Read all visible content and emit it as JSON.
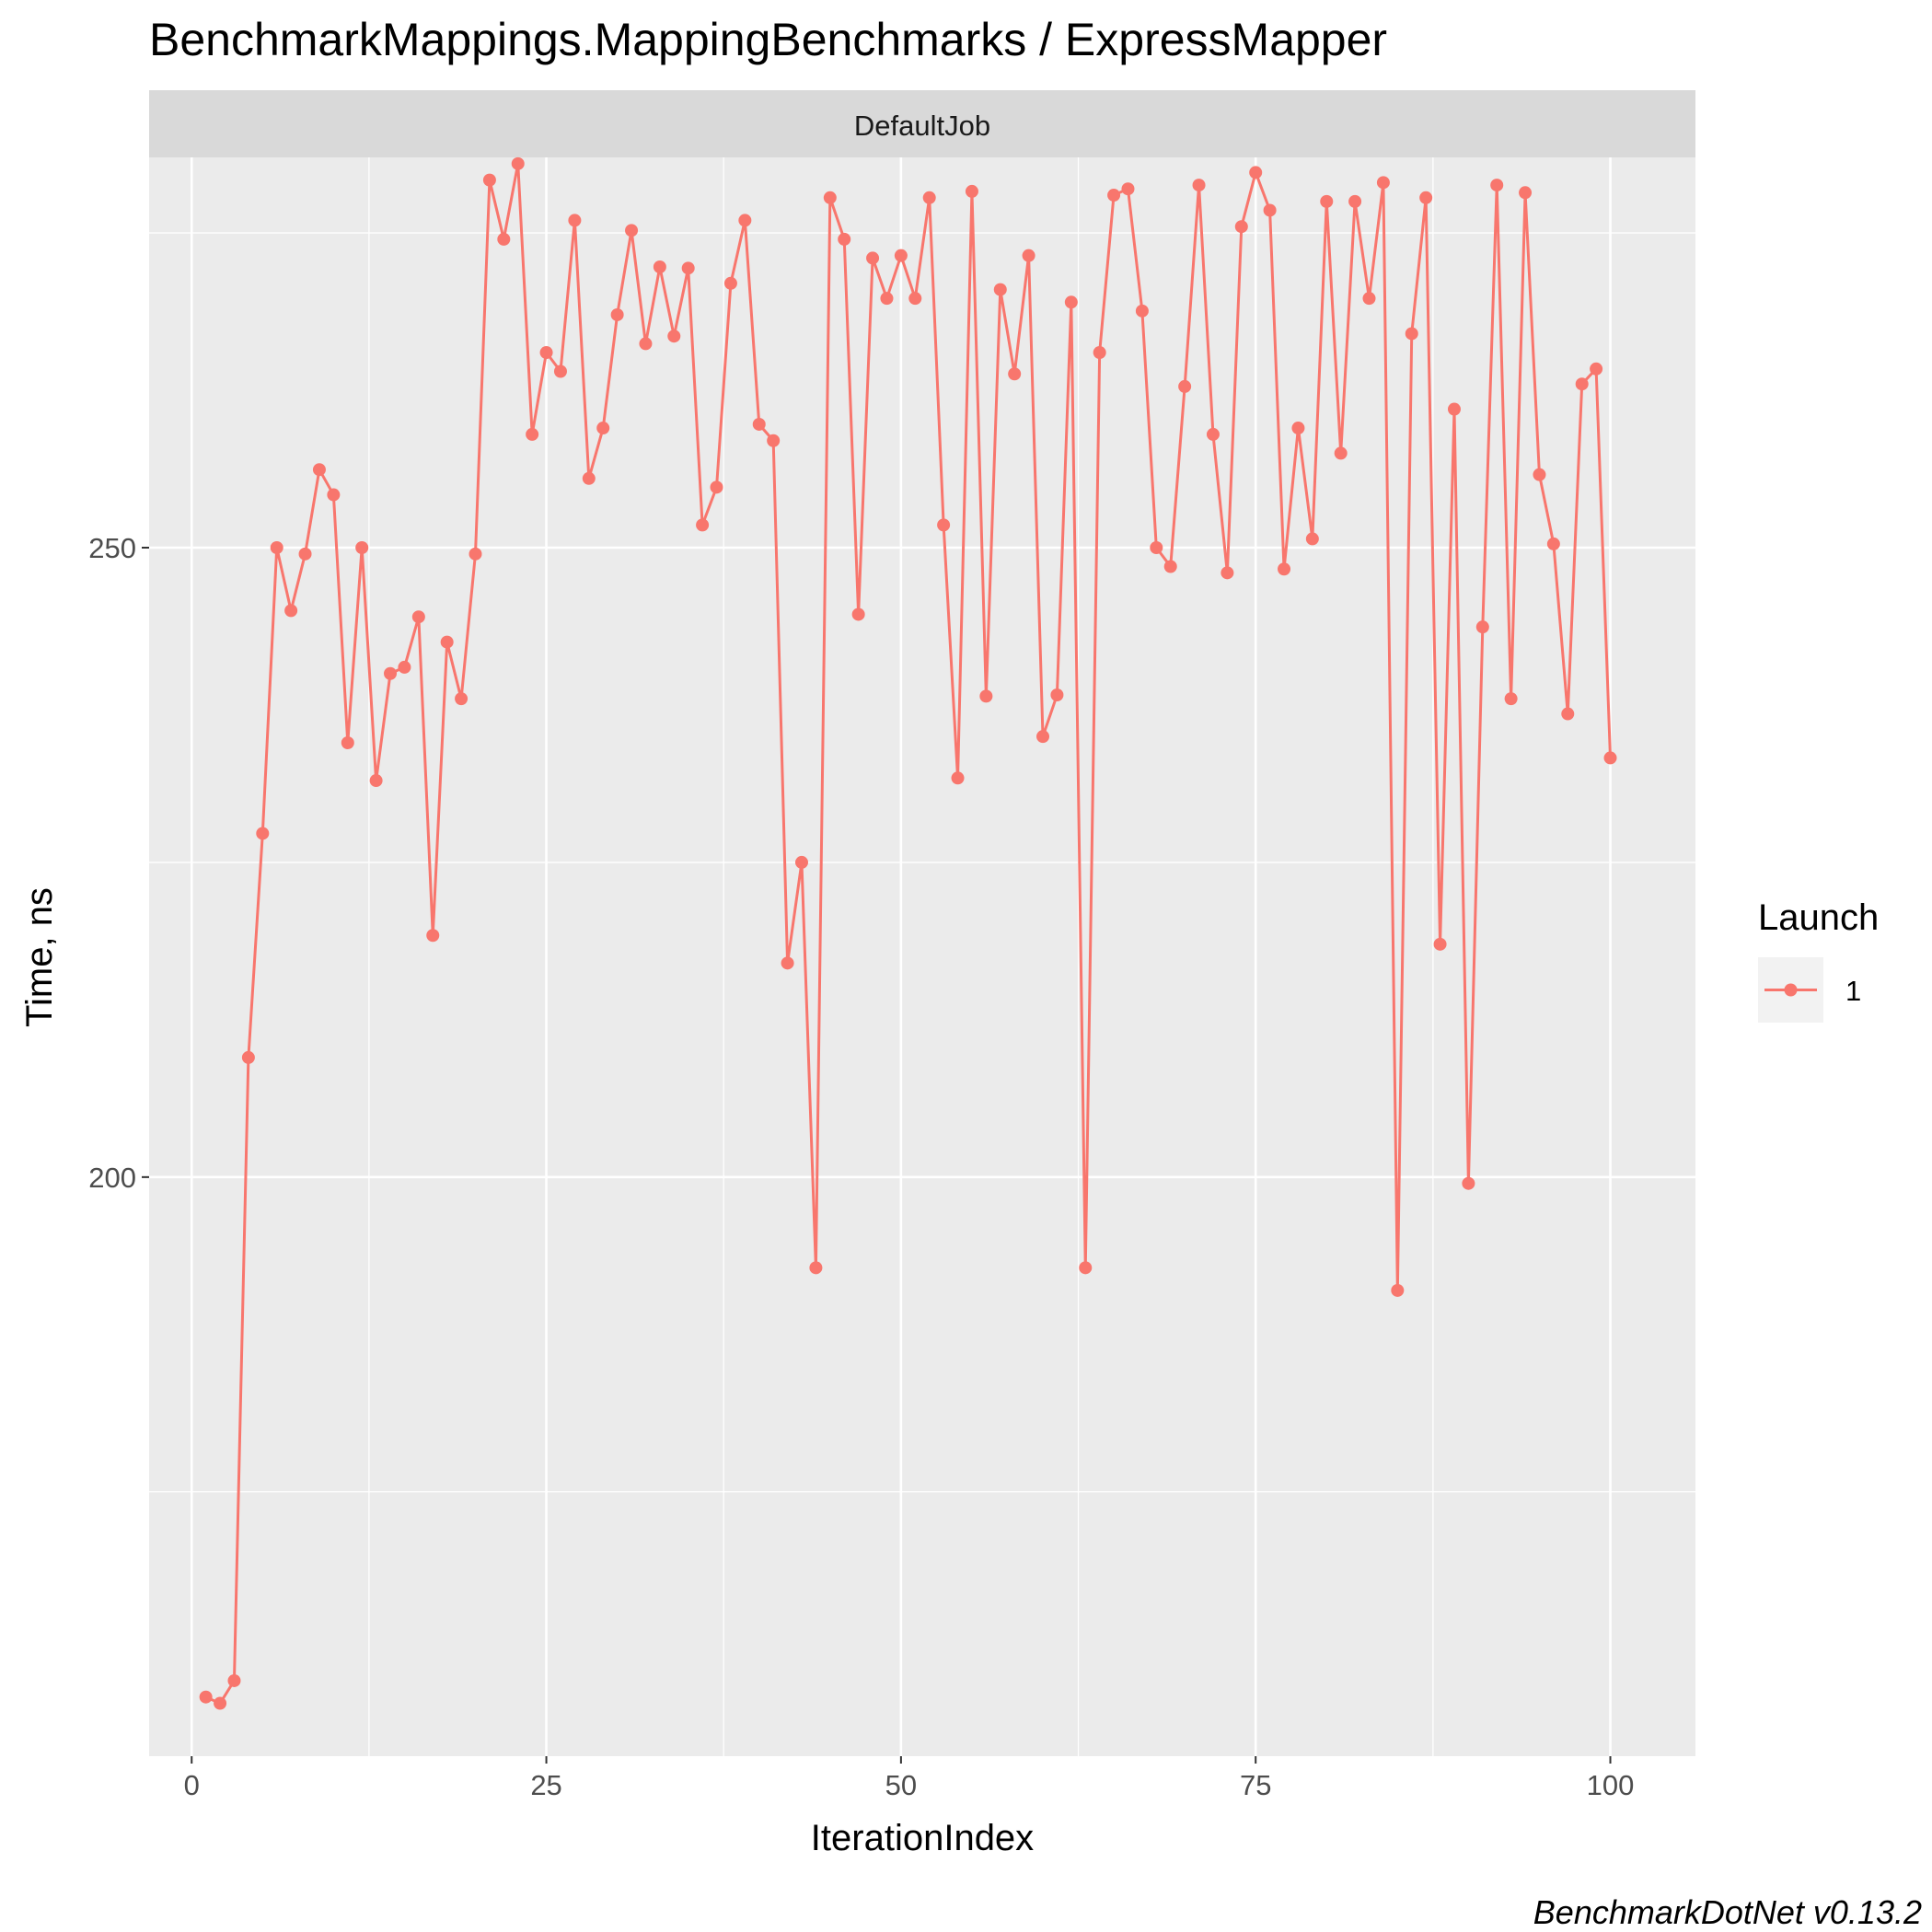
{
  "chart_data": {
    "type": "line",
    "title": "BenchmarkMappings.MappingBenchmarks / ExpressMapper",
    "facet_label": "DefaultJob",
    "xlabel": "IterationIndex",
    "ylabel": "Time, ns",
    "caption": "BenchmarkDotNet v0.13.2",
    "xlim": [
      -3,
      106
    ],
    "ylim": [
      154,
      281
    ],
    "x_ticks": [
      0,
      25,
      50,
      75,
      100
    ],
    "x_tick_labels": [
      "0",
      "25",
      "50",
      "75",
      "100"
    ],
    "y_ticks": [
      200,
      250
    ],
    "y_tick_labels": [
      "200",
      "250"
    ],
    "y_minor_gridlines": [
      175,
      225,
      275
    ],
    "grid": true,
    "legend": {
      "title": "Launch",
      "position": "right",
      "entries": [
        "1"
      ]
    },
    "colors": {
      "series": "#F8766D",
      "panel": "#EBEBEB",
      "strip": "#D9D9D9",
      "grid": "#FFFFFF"
    },
    "series": [
      {
        "name": "1",
        "x": [
          1,
          2,
          3,
          4,
          5,
          6,
          7,
          8,
          9,
          10,
          11,
          12,
          13,
          14,
          15,
          16,
          17,
          18,
          19,
          20,
          21,
          22,
          23,
          24,
          25,
          26,
          27,
          28,
          29,
          30,
          31,
          32,
          33,
          34,
          35,
          36,
          37,
          38,
          39,
          40,
          41,
          42,
          43,
          44,
          45,
          46,
          47,
          48,
          49,
          50,
          51,
          52,
          53,
          54,
          55,
          56,
          57,
          58,
          59,
          60,
          61,
          62,
          63,
          64,
          65,
          66,
          67,
          68,
          69,
          70,
          71,
          72,
          73,
          74,
          75,
          76,
          77,
          78,
          79,
          80,
          81,
          82,
          83,
          84,
          85,
          86,
          87,
          88,
          89,
          90,
          91,
          92,
          93,
          94,
          95,
          96,
          97,
          98,
          99,
          100
        ],
        "values": [
          158.7,
          158.2,
          160.0,
          209.5,
          227.3,
          250.0,
          245.0,
          249.5,
          256.2,
          254.2,
          234.5,
          250.0,
          231.5,
          240.0,
          240.5,
          244.5,
          219.2,
          242.5,
          238.0,
          249.5,
          279.2,
          274.5,
          280.5,
          259.0,
          265.5,
          264.0,
          276.0,
          255.5,
          259.5,
          268.5,
          275.2,
          266.2,
          272.3,
          266.8,
          272.2,
          251.8,
          254.8,
          271.0,
          276.0,
          259.8,
          258.5,
          217.0,
          225.0,
          192.8,
          277.8,
          274.5,
          244.7,
          273.0,
          269.8,
          273.2,
          269.8,
          277.8,
          251.8,
          231.7,
          278.3,
          238.2,
          270.5,
          263.8,
          273.2,
          235.0,
          238.3,
          269.5,
          192.8,
          265.5,
          278.0,
          278.5,
          268.8,
          250.0,
          248.5,
          262.8,
          278.8,
          259.0,
          248.0,
          275.5,
          279.8,
          276.8,
          248.3,
          259.5,
          250.7,
          277.5,
          257.5,
          277.5,
          269.8,
          279.0,
          191.0,
          267.0,
          277.8,
          218.5,
          261.0,
          199.5,
          243.7,
          278.8,
          238.0,
          278.2,
          255.8,
          250.3,
          236.8,
          263.0,
          264.2,
          233.3
        ]
      }
    ]
  }
}
